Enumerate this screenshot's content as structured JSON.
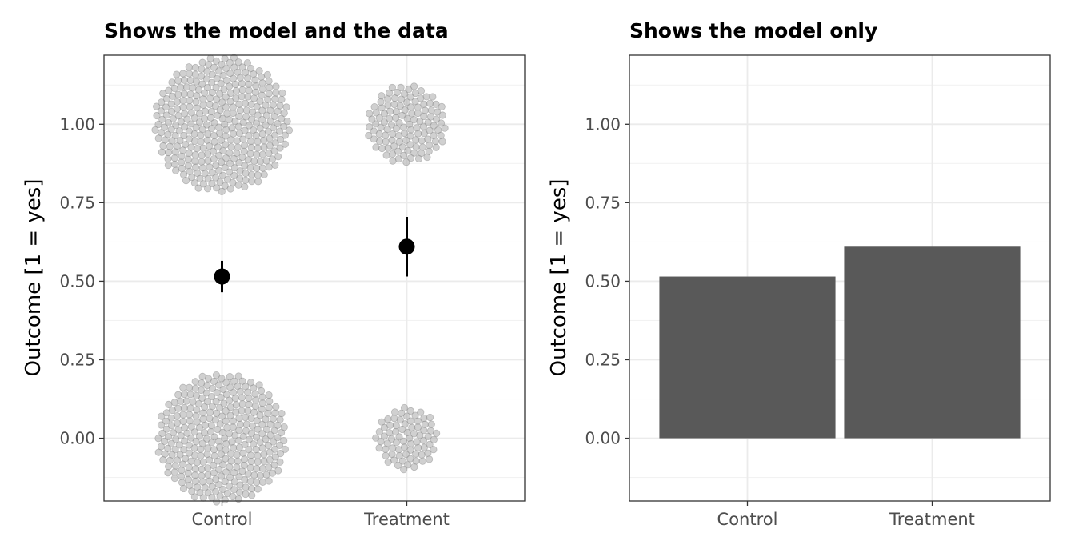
{
  "chart_data": [
    {
      "type": "scatter",
      "title": "Shows the model and the data",
      "xlabel": "",
      "ylabel": "Outcome [1 = yes]",
      "categories": [
        "Control",
        "Treatment"
      ],
      "ylim": [
        -0.2,
        1.22
      ],
      "yticks": [
        "0.00",
        "0.25",
        "0.50",
        "0.75",
        "1.00"
      ],
      "grid": true,
      "raw_points": {
        "colors": {
          "fill": "#aaaaaa",
          "edge": "#8c8c8c"
        },
        "groups": [
          {
            "category": "Control",
            "y": 1,
            "count": 350
          },
          {
            "category": "Control",
            "y": 0,
            "count": 320
          },
          {
            "category": "Treatment",
            "y": 1,
            "count": 120
          },
          {
            "category": "Treatment",
            "y": 0,
            "count": 75
          }
        ]
      },
      "series": [
        {
          "values": [
            0.515,
            0.61
          ],
          "lower": [
            0.465,
            0.515
          ],
          "upper": [
            0.565,
            0.705
          ],
          "color": "#000000"
        }
      ]
    },
    {
      "type": "bar",
      "title": "Shows the model only",
      "xlabel": "",
      "ylabel": "Outcome [1 = yes]",
      "categories": [
        "Control",
        "Treatment"
      ],
      "ylim": [
        -0.2,
        1.22
      ],
      "yticks": [
        "0.00",
        "0.25",
        "0.50",
        "0.75",
        "1.00"
      ],
      "grid": true,
      "values": [
        0.515,
        0.61
      ],
      "bar_color": "#595959"
    }
  ]
}
